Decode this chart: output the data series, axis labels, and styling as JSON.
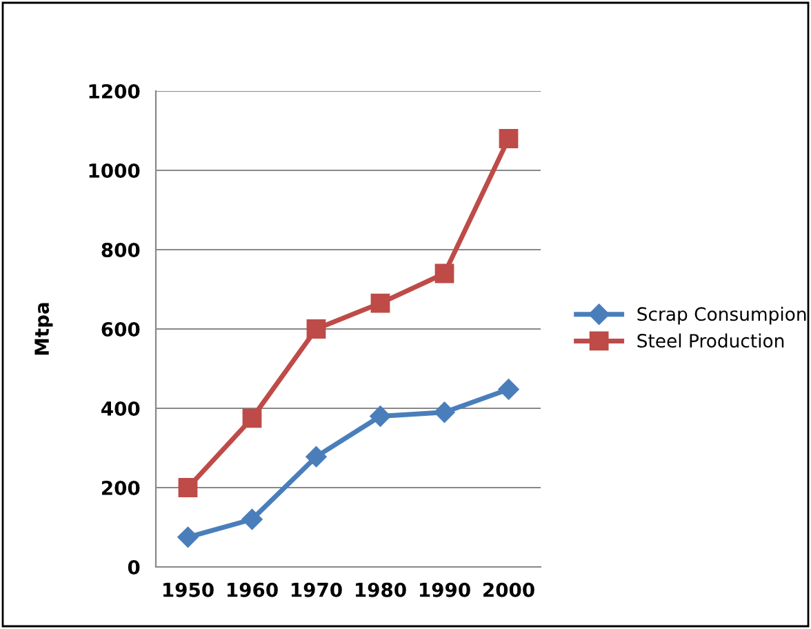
{
  "chart_data": {
    "type": "line",
    "ylabel": "Mtpa",
    "categories": [
      "1950",
      "1960",
      "1970",
      "1980",
      "1990",
      "2000"
    ],
    "series": [
      {
        "name": "Scrap Consumpion",
        "color": "#4a7ebb",
        "marker": "diamond",
        "values": [
          75,
          120,
          278,
          380,
          390,
          448
        ]
      },
      {
        "name": "Steel Production",
        "color": "#be4b48",
        "marker": "square",
        "values": [
          200,
          375,
          600,
          665,
          740,
          1080
        ]
      }
    ],
    "ylim": [
      0,
      1200
    ],
    "yticks": [
      0,
      200,
      400,
      600,
      800,
      1000,
      1200
    ],
    "grid": "y",
    "legend": "right"
  }
}
